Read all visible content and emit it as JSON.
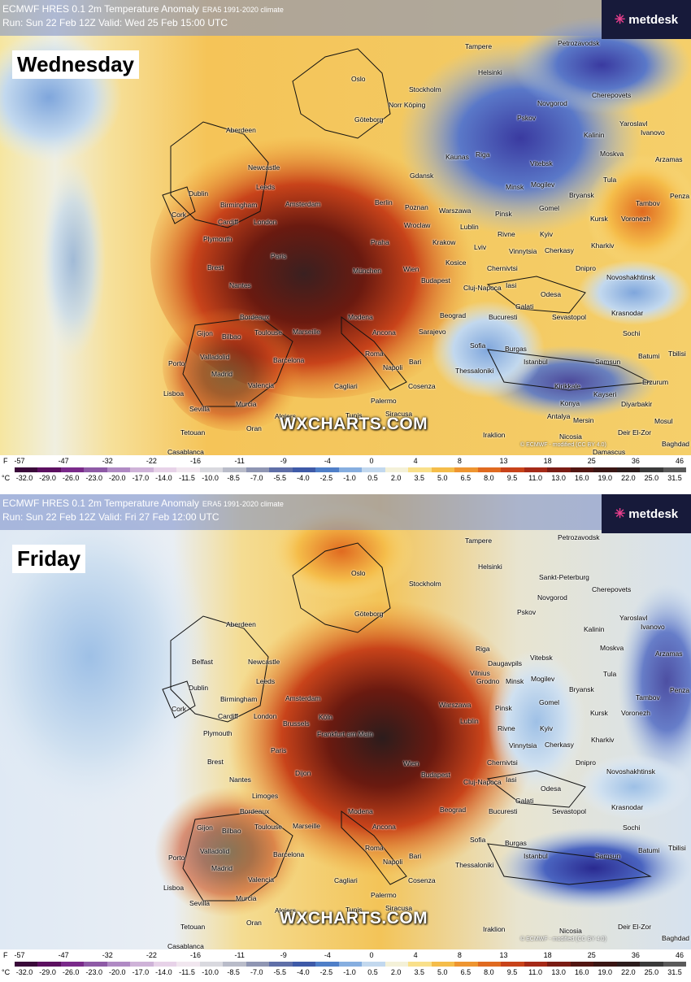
{
  "panels": [
    {
      "title": "ECMWF HRES 0.1 2m Temperature Anomaly",
      "subtitle": "ERA5 1991-2020 climate",
      "run_line": "Run: Sun 22 Feb 12Z Valid: Wed 25 Feb 15:00 UTC",
      "day_label": "Wednesday",
      "brand": "metdesk",
      "watermark": "WXCHARTS.COM",
      "copyright": "© ECMWF - modified (CC BY 4.0)",
      "cities": [
        "Oslo",
        "Stockholm",
        "Tampere",
        "Helsinki",
        "Petrozavodsk",
        "Norr Köping",
        "Göteborg",
        "Riga",
        "Pskov",
        "Novgorod",
        "Cherepovets",
        "Yaroslavl",
        "Ivanovo",
        "Kalinin",
        "Moskva",
        "Arzamas",
        "Aberdeen",
        "Newcastle",
        "Leeds",
        "Dublin",
        "Birmingham",
        "Cork",
        "Cardiff",
        "London",
        "Plymouth",
        "Amsterdam",
        "Berlin",
        "Gdansk",
        "Kaunas",
        "Minsk",
        "Vitebsk",
        "Mogilev",
        "Bryansk",
        "Tula",
        "Tambov",
        "Penza",
        "Poznan",
        "Warszawa",
        "Wroclaw",
        "Praha",
        "Lublin",
        "Pinsk",
        "Gomel",
        "Kursk",
        "Voronezh",
        "Kyiv",
        "Rivne",
        "Krakow",
        "Lviv",
        "Vinnytsia",
        "Cherkasy",
        "Kharkiv",
        "Brest",
        "Paris",
        "München",
        "Wien",
        "Budapest",
        "Kosice",
        "Chernivtsi",
        "Dnipro",
        "Novoshakhtinsk",
        "Nantes",
        "Cluj-Napoca",
        "Iasi",
        "Odesa",
        "Bordeaux",
        "Toulouse",
        "Marseille",
        "Modena",
        "Beograd",
        "Bucuresti",
        "Galati",
        "Sevastopol",
        "Krasnodar",
        "Gijon",
        "Bilbao",
        "Ancona",
        "Sarajevo",
        "Sochi",
        "Porto",
        "Valladolid",
        "Barcelona",
        "Roma",
        "Sofia",
        "Burgas",
        "Batumi",
        "Tbilisi",
        "Madrid",
        "Napoli",
        "Bari",
        "Thessaloniki",
        "Istanbul",
        "Samsun",
        "Erzurum",
        "Lisboa",
        "Valencia",
        "Cagliari",
        "Cosenza",
        "Kirikkale",
        "Kayseri",
        "Sevilla",
        "Murcia",
        "Palermo",
        "Siracusa",
        "Konya",
        "Diyarbakir",
        "Algiers",
        "Tunis",
        "Antalya",
        "Mersin",
        "Mosul",
        "Tetouan",
        "Oran",
        "Iraklion",
        "Nicosia",
        "Deir El-Zor",
        "Casablanca",
        "Damascus",
        "Baghdad"
      ],
      "palette": "wednesday"
    },
    {
      "title": "ECMWF HRES 0.1 2m Temperature Anomaly",
      "subtitle": "ERA5 1991-2020 climate",
      "run_line": "Run: Sun 22 Feb 12Z Valid: Fri 27 Feb 12:00 UTC",
      "day_label": "Friday",
      "brand": "metdesk",
      "watermark": "WXCHARTS.COM",
      "copyright": "© ECMWF - modified (CC BY 4.0)",
      "cities": [
        "Oslo",
        "Stockholm",
        "Tampere",
        "Helsinki",
        "Sankt-Peterburg",
        "Petrozavodsk",
        "Göteborg",
        "Riga",
        "Daugavpils",
        "Vilnius",
        "Pskov",
        "Novgorod",
        "Cherepovets",
        "Yaroslavl",
        "Ivanovo",
        "Kalinin",
        "Moskva",
        "Arzamas",
        "Aberdeen",
        "Newcastle",
        "Leeds",
        "Belfast",
        "Dublin",
        "Birmingham",
        "Cork",
        "Cardiff",
        "London",
        "Plymouth",
        "Amsterdam",
        "Köln",
        "Frankfurt am Main",
        "Brussels",
        "Grodno",
        "Minsk",
        "Vitebsk",
        "Mogilev",
        "Bryansk",
        "Tula",
        "Tambov",
        "Penza",
        "Warszawa",
        "Lublin",
        "Pinsk",
        "Gomel",
        "Kursk",
        "Voronezh",
        "Kyiv",
        "Rivne",
        "Vinnytsia",
        "Cherkasy",
        "Kharkiv",
        "Brest",
        "Paris",
        "Dijon",
        "Wien",
        "Budapest",
        "Chernivtsi",
        "Dnipro",
        "Novoshakhtinsk",
        "Nantes",
        "Limoges",
        "Cluj-Napoca",
        "Iasi",
        "Odesa",
        "Bordeaux",
        "Toulouse",
        "Marseille",
        "Modena",
        "Beograd",
        "Bucuresti",
        "Galati",
        "Sevastopol",
        "Krasnodar",
        "Gijon",
        "Bilbao",
        "Ancona",
        "Sochi",
        "Porto",
        "Valladolid",
        "Barcelona",
        "Roma",
        "Sofia",
        "Burgas",
        "Batumi",
        "Tbilisi",
        "Madrid",
        "Napoli",
        "Bari",
        "Thessaloniki",
        "Istanbul",
        "Samsun",
        "Lisboa",
        "Valencia",
        "Cagliari",
        "Cosenza",
        "Sevilla",
        "Murcia",
        "Palermo",
        "Siracusa",
        "Algiers",
        "Tunis",
        "Tetouan",
        "Oran",
        "Iraklion",
        "Nicosia",
        "Deir El-Zor",
        "Casablanca",
        "Baghdad"
      ],
      "palette": "friday"
    }
  ],
  "legend": {
    "f_unit": "F",
    "f_ticks": [
      "-57",
      "-47",
      "-32",
      "-22",
      "-16",
      "-11",
      "-9",
      "-4",
      "0",
      "4",
      "8",
      "13",
      "18",
      "25",
      "36",
      "46"
    ],
    "c_unit": "°C",
    "c_ticks": [
      "-32.0",
      "-29.0",
      "-26.0",
      "-23.0",
      "-20.0",
      "-17.0",
      "-14.0",
      "-11.5",
      "-10.0",
      "-8.5",
      "-7.0",
      "-5.5",
      "-4.0",
      "-2.5",
      "-1.0",
      "0.5",
      "2.0",
      "3.5",
      "5.0",
      "6.5",
      "8.0",
      "9.5",
      "11.0",
      "13.0",
      "16.0",
      "19.0",
      "22.0",
      "25.0",
      "31.5"
    ],
    "colors": [
      "#3a0a3a",
      "#5c1060",
      "#7a2a8a",
      "#8e5aa6",
      "#b08ac4",
      "#cfb3d8",
      "#e7d2e8",
      "#f1e6ef",
      "#d9d9df",
      "#b9bcc9",
      "#8f96b3",
      "#5f6fa8",
      "#3e5aa8",
      "#4f7fc8",
      "#86aee0",
      "#c2d8ee",
      "#f4f1d8",
      "#f9e08a",
      "#f5bd4a",
      "#ee9530",
      "#e06a20",
      "#c8431a",
      "#a52a18",
      "#7a1c14",
      "#521612",
      "#3a1614",
      "#2c1c1c",
      "#3a3a3a",
      "#5a5a5a"
    ]
  }
}
